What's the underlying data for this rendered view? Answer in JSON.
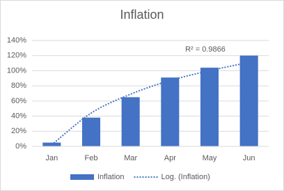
{
  "chart_data": {
    "type": "bar",
    "title": "Inflation",
    "categories": [
      "Jan",
      "Feb",
      "Mar",
      "Apr",
      "May",
      "Jun"
    ],
    "series": [
      {
        "name": "Inflation",
        "type": "bar",
        "color": "#4472c4",
        "values": [
          5,
          38,
          65,
          91,
          104,
          120
        ]
      },
      {
        "name": "Log. (Inflation)",
        "type": "line",
        "line_style": "dotted",
        "color": "#4472c4",
        "values": [
          2,
          44,
          69,
          87,
          100,
          111
        ]
      }
    ],
    "annotation": "R² = 0.9866",
    "ylim": [
      0,
      140
    ],
    "yticks": [
      {
        "value": 0,
        "label": "0%"
      },
      {
        "value": 20,
        "label": "20%"
      },
      {
        "value": 40,
        "label": "40%"
      },
      {
        "value": 60,
        "label": "60%"
      },
      {
        "value": 80,
        "label": "80%"
      },
      {
        "value": 100,
        "label": "100%"
      },
      {
        "value": 120,
        "label": "120%"
      },
      {
        "value": 140,
        "label": "140%"
      }
    ],
    "grid": true,
    "legend": "bottom"
  }
}
